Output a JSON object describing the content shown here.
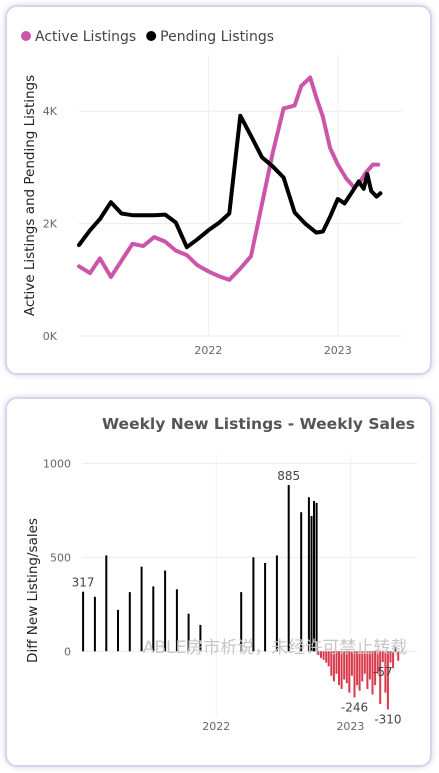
{
  "chart_data": [
    {
      "type": "line",
      "title": "",
      "legend_placement": "top-left",
      "ylabel": "Active Listings and Pending Listings",
      "ylim": [
        0,
        5000
      ],
      "y_ticks": [
        {
          "value": 0,
          "label": "0K"
        },
        {
          "value": 2000,
          "label": "2K"
        },
        {
          "value": 4000,
          "label": "4K"
        }
      ],
      "xlim": [
        "2021-01-01",
        "2023-07-01"
      ],
      "x_ticks": [
        {
          "date": "2022-01-01",
          "label": "2022"
        },
        {
          "date": "2023-01-01",
          "label": "2023"
        }
      ],
      "grid": true,
      "colors": {
        "active": "#cc55aa",
        "pending": "#000000"
      },
      "series": [
        {
          "name": "Active Listings",
          "color": "#cc55aa",
          "points": [
            [
              "2021-01-01",
              1240
            ],
            [
              "2021-02-01",
              1120
            ],
            [
              "2021-03-01",
              1380
            ],
            [
              "2021-04-01",
              1050
            ],
            [
              "2021-05-01",
              1340
            ],
            [
              "2021-06-01",
              1640
            ],
            [
              "2021-07-01",
              1600
            ],
            [
              "2021-08-01",
              1760
            ],
            [
              "2021-09-01",
              1680
            ],
            [
              "2021-10-01",
              1520
            ],
            [
              "2021-11-01",
              1440
            ],
            [
              "2021-12-01",
              1260
            ],
            [
              "2022-01-01",
              1150
            ],
            [
              "2022-02-01",
              1060
            ],
            [
              "2022-03-01",
              1000
            ],
            [
              "2022-04-01",
              1200
            ],
            [
              "2022-05-01",
              1420
            ],
            [
              "2022-06-01",
              2350
            ],
            [
              "2022-07-01",
              3250
            ],
            [
              "2022-08-01",
              4050
            ],
            [
              "2022-09-01",
              4100
            ],
            [
              "2022-09-20",
              4450
            ],
            [
              "2022-10-15",
              4600
            ],
            [
              "2022-11-01",
              4250
            ],
            [
              "2022-11-20",
              3900
            ],
            [
              "2022-12-10",
              3350
            ],
            [
              "2023-01-01",
              3050
            ],
            [
              "2023-01-25",
              2800
            ],
            [
              "2023-02-15",
              2650
            ],
            [
              "2023-03-01",
              2700
            ],
            [
              "2023-03-20",
              2900
            ],
            [
              "2023-04-10",
              3050
            ],
            [
              "2023-04-25",
              3050
            ]
          ]
        },
        {
          "name": "Pending Listings",
          "color": "#000000",
          "points": [
            [
              "2021-01-01",
              1620
            ],
            [
              "2021-02-01",
              1880
            ],
            [
              "2021-03-01",
              2080
            ],
            [
              "2021-04-01",
              2380
            ],
            [
              "2021-05-01",
              2180
            ],
            [
              "2021-06-01",
              2150
            ],
            [
              "2021-07-01",
              2150
            ],
            [
              "2021-08-01",
              2150
            ],
            [
              "2021-09-01",
              2160
            ],
            [
              "2021-10-01",
              2020
            ],
            [
              "2021-11-01",
              1580
            ],
            [
              "2021-12-01",
              1720
            ],
            [
              "2022-01-01",
              1880
            ],
            [
              "2022-02-01",
              2020
            ],
            [
              "2022-03-01",
              2180
            ],
            [
              "2022-04-01",
              3920
            ],
            [
              "2022-05-01",
              3560
            ],
            [
              "2022-06-01",
              3180
            ],
            [
              "2022-07-01",
              3020
            ],
            [
              "2022-08-01",
              2820
            ],
            [
              "2022-09-01",
              2200
            ],
            [
              "2022-10-01",
              2000
            ],
            [
              "2022-11-01",
              1840
            ],
            [
              "2022-11-20",
              1860
            ],
            [
              "2022-12-10",
              2120
            ],
            [
              "2023-01-01",
              2440
            ],
            [
              "2023-01-20",
              2360
            ],
            [
              "2023-02-10",
              2560
            ],
            [
              "2023-03-01",
              2750
            ],
            [
              "2023-03-15",
              2620
            ],
            [
              "2023-03-25",
              2880
            ],
            [
              "2023-04-05",
              2580
            ],
            [
              "2023-04-20",
              2480
            ],
            [
              "2023-05-01",
              2540
            ]
          ]
        }
      ]
    },
    {
      "type": "bar",
      "title": "Weekly New Listings - Weekly Sales",
      "ylabel": "Diff New Listing/sales",
      "ylim": [
        -350,
        1050
      ],
      "y_ticks": [
        {
          "value": 0,
          "label": "0"
        },
        {
          "value": 500,
          "label": "500"
        },
        {
          "value": 1000,
          "label": "1000"
        }
      ],
      "xlim": [
        "2021-01-01",
        "2023-07-01"
      ],
      "x_ticks": [
        {
          "date": "2022-01-01",
          "label": "2022"
        },
        {
          "date": "2023-01-01",
          "label": "2023"
        }
      ],
      "grid": true,
      "colors": {
        "positive": "#000000",
        "negative": "#d9394a"
      },
      "bars": [
        [
          "2021-01-04",
          317
        ],
        [
          "2021-02-05",
          290
        ],
        [
          "2021-03-08",
          510
        ],
        [
          "2021-04-09",
          220
        ],
        [
          "2021-05-11",
          315
        ],
        [
          "2021-06-12",
          450
        ],
        [
          "2021-07-14",
          345
        ],
        [
          "2021-08-15",
          430
        ],
        [
          "2021-09-16",
          330
        ],
        [
          "2021-10-18",
          200
        ],
        [
          "2021-11-19",
          140
        ],
        [
          "2022-03-10",
          315
        ],
        [
          "2022-04-12",
          500
        ],
        [
          "2022-05-14",
          470
        ],
        [
          "2022-06-15",
          510
        ],
        [
          "2022-07-17",
          885
        ],
        [
          "2022-08-20",
          740
        ],
        [
          "2022-09-10",
          820
        ],
        [
          "2022-09-17",
          720
        ],
        [
          "2022-09-24",
          800
        ],
        [
          "2022-10-01",
          790
        ],
        [
          "2022-10-06",
          -20
        ],
        [
          "2022-10-13",
          -35
        ],
        [
          "2022-10-20",
          -45
        ],
        [
          "2022-10-27",
          -60
        ],
        [
          "2022-11-03",
          -80
        ],
        [
          "2022-11-10",
          -130
        ],
        [
          "2022-11-17",
          -160
        ],
        [
          "2022-11-24",
          -120
        ],
        [
          "2022-12-01",
          -180
        ],
        [
          "2022-12-08",
          -200
        ],
        [
          "2022-12-15",
          -150
        ],
        [
          "2022-12-22",
          -170
        ],
        [
          "2022-12-29",
          -220
        ],
        [
          "2023-01-05",
          -130
        ],
        [
          "2023-01-12",
          -246
        ],
        [
          "2023-01-19",
          -180
        ],
        [
          "2023-01-26",
          -210
        ],
        [
          "2023-02-02",
          -160
        ],
        [
          "2023-02-09",
          -120
        ],
        [
          "2023-02-16",
          -200
        ],
        [
          "2023-02-23",
          -150
        ],
        [
          "2023-03-02",
          -230
        ],
        [
          "2023-03-09",
          -180
        ],
        [
          "2023-03-16",
          -120
        ],
        [
          "2023-03-23",
          -280
        ],
        [
          "2023-03-30",
          -57
        ],
        [
          "2023-04-06",
          -220
        ],
        [
          "2023-04-13",
          -310
        ],
        [
          "2023-04-20",
          -60
        ],
        [
          "2023-04-27",
          -90
        ],
        [
          "2023-05-04",
          20
        ],
        [
          "2023-05-11",
          -50
        ]
      ],
      "data_labels": [
        {
          "date": "2021-01-04",
          "value": 317,
          "text": "317"
        },
        {
          "date": "2022-07-17",
          "value": 885,
          "text": "885"
        },
        {
          "date": "2023-01-12",
          "value": -246,
          "text": "-246"
        },
        {
          "date": "2023-03-30",
          "value": -57,
          "text": "-57"
        },
        {
          "date": "2023-04-13",
          "value": -310,
          "text": "-310"
        }
      ]
    }
  ],
  "watermark": "ABLE房市析说，未经许可禁止转载"
}
